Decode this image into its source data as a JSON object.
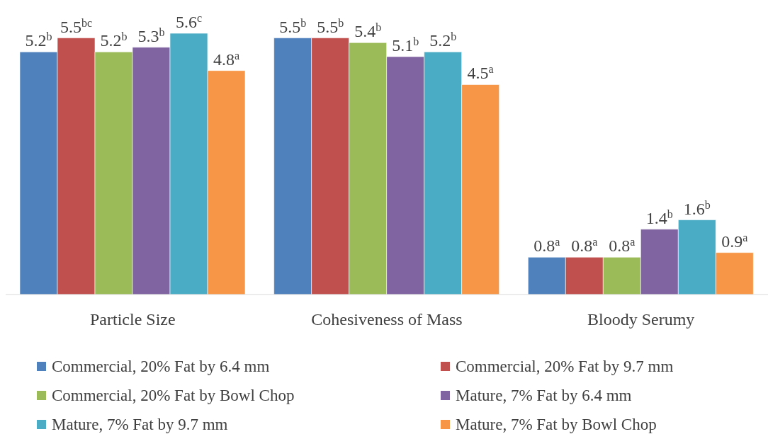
{
  "chart_data": {
    "type": "bar",
    "categories": [
      "Particle Size",
      "Cohesiveness of Mass",
      "Bloody Serumy"
    ],
    "series": [
      {
        "name": "Commercial, 20% Fat by 6.4 mm",
        "color": "#4f81bd",
        "values": [
          5.2,
          5.5,
          0.8
        ],
        "value_labels": [
          "5.2$^{b}$",
          "5.5$^{b}$",
          "0.8$^{a}$"
        ]
      },
      {
        "name": "Commercial, 20% Fat by 9.7 mm",
        "color": "#c0504d",
        "values": [
          5.5,
          5.5,
          0.8
        ],
        "value_labels": [
          "5.5$^{bc}$",
          "5.5$^{b}$",
          "0.8$^{a}$"
        ]
      },
      {
        "name": "Commercial, 20% Fat by Bowl Chop",
        "color": "#9bbb59",
        "values": [
          5.2,
          5.4,
          0.8
        ],
        "value_labels": [
          "5.2$^{b}$",
          "5.4$^{b}$",
          "0.8$^{a}$"
        ]
      },
      {
        "name": "Mature, 7% Fat by 6.4 mm",
        "color": "#8064a2",
        "values": [
          5.3,
          5.1,
          1.4
        ],
        "value_labels": [
          "5.3$^{b}$",
          "5.1$^{b}$",
          "1.4$^{b}$"
        ]
      },
      {
        "name": "Mature, 7% Fat by 9.7 mm",
        "color": "#4bacc6",
        "values": [
          5.6,
          5.2,
          1.6
        ],
        "value_labels": [
          "5.6$^{c}$",
          "5.2$^{b}$",
          "1.6$^{b}$"
        ]
      },
      {
        "name": "Mature, 7% Fat by Bowl Chop",
        "color": "#f79646",
        "values": [
          4.8,
          4.5,
          0.9
        ],
        "value_labels": [
          "4.8$^{a}$",
          "4.5$^{a}$",
          "0.9$^{a}$"
        ]
      }
    ],
    "legend": "bottom",
    "tick_labels": "x"
  }
}
